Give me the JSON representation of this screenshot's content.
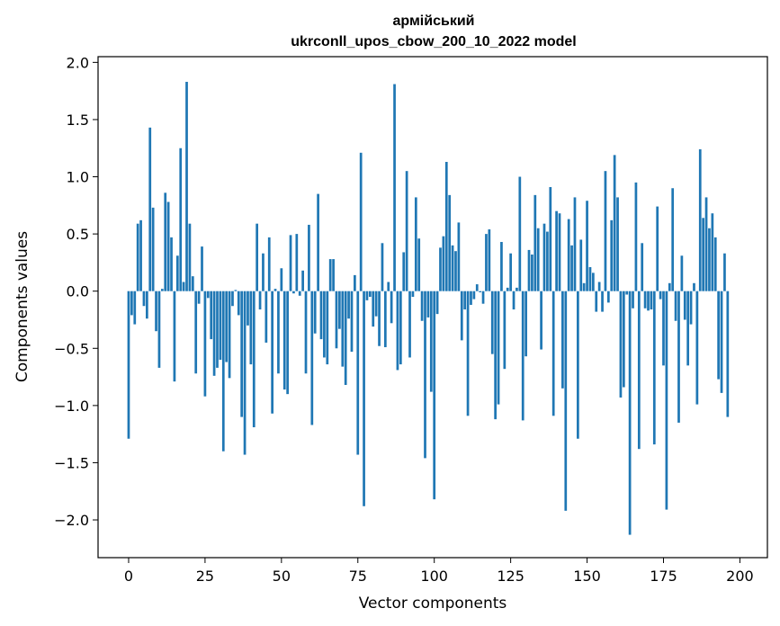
{
  "chart_data": {
    "type": "bar",
    "title": "армійський",
    "subtitle": "ukrconll_upos_cbow_200_10_2022 model",
    "xlabel": "Vector components",
    "ylabel": "Components values",
    "xlim": [
      -10,
      209
    ],
    "ylim": [
      -2.33,
      2.05
    ],
    "x_ticks": [
      0,
      25,
      50,
      75,
      100,
      125,
      150,
      175,
      200
    ],
    "x_tick_labels": [
      "0",
      "25",
      "50",
      "75",
      "100",
      "125",
      "150",
      "175",
      "200"
    ],
    "y_ticks": [
      2.0,
      1.5,
      1.0,
      0.5,
      0.0,
      -0.5,
      -1.0,
      -1.5,
      -2.0
    ],
    "y_tick_labels": [
      "2.0",
      "1.5",
      "1.0",
      "0.5",
      "0.0",
      "−0.5",
      "−1.0",
      "−1.5",
      "−2.0"
    ],
    "bar_color": "#1f77b4",
    "grid": false,
    "values": [
      -1.29,
      -0.21,
      -0.29,
      0.59,
      0.62,
      -0.13,
      -0.24,
      1.43,
      0.73,
      -0.35,
      -0.67,
      0.02,
      0.86,
      0.78,
      0.47,
      -0.79,
      0.31,
      1.25,
      0.08,
      1.83,
      0.59,
      0.13,
      -0.72,
      -0.11,
      0.39,
      -0.92,
      -0.06,
      -0.42,
      -0.74,
      -0.67,
      -0.6,
      -1.4,
      -0.62,
      -0.76,
      -0.13,
      0.01,
      -0.21,
      -1.1,
      -1.43,
      -0.3,
      -0.64,
      -1.19,
      0.59,
      -0.16,
      0.33,
      -0.45,
      0.47,
      -1.07,
      0.02,
      -0.72,
      0.2,
      -0.86,
      -0.9,
      0.49,
      -0.02,
      0.5,
      -0.04,
      0.18,
      -0.72,
      0.58,
      -1.17,
      -0.37,
      0.85,
      -0.42,
      -0.58,
      -0.64,
      0.28,
      0.28,
      -0.5,
      -0.33,
      -0.66,
      -0.82,
      -0.24,
      -0.53,
      0.14,
      -1.43,
      1.21,
      -1.88,
      -0.08,
      -0.05,
      -0.31,
      -0.22,
      -0.48,
      0.42,
      -0.49,
      0.08,
      -0.28,
      1.81,
      -0.69,
      -0.64,
      0.34,
      1.05,
      -0.58,
      -0.05,
      0.82,
      0.46,
      -0.26,
      -1.46,
      -0.23,
      -0.88,
      -1.82,
      -0.2,
      0.38,
      0.48,
      1.13,
      0.84,
      0.4,
      0.35,
      0.6,
      -0.43,
      -0.16,
      -1.09,
      -0.12,
      -0.07,
      0.06,
      -0.01,
      -0.11,
      0.5,
      0.54,
      -0.55,
      -1.12,
      -0.99,
      0.43,
      -0.68,
      0.03,
      0.33,
      -0.16,
      0.03,
      1.0,
      -1.13,
      -0.57,
      0.36,
      0.32,
      0.84,
      0.55,
      -0.51,
      0.59,
      0.52,
      0.91,
      -1.09,
      0.7,
      0.68,
      -0.85,
      -1.92,
      0.63,
      0.4,
      0.82,
      -1.29,
      0.45,
      0.07,
      0.79,
      0.21,
      0.16,
      -0.18,
      0.08,
      -0.18,
      1.05,
      -0.1,
      0.62,
      1.19,
      0.82,
      -0.93,
      -0.84,
      -0.03,
      -2.13,
      -0.15,
      0.95,
      -1.38,
      0.42,
      -0.15,
      -0.17,
      -0.16,
      -1.34,
      0.74,
      -0.07,
      -0.65,
      -1.91,
      0.07,
      0.9,
      -0.26,
      -1.15,
      0.31,
      -0.25,
      -0.65,
      -0.29,
      0.07,
      -0.99,
      1.24,
      0.64,
      0.82,
      0.55,
      0.68,
      0.47,
      -0.77,
      -0.89,
      0.33,
      -1.1
    ]
  }
}
